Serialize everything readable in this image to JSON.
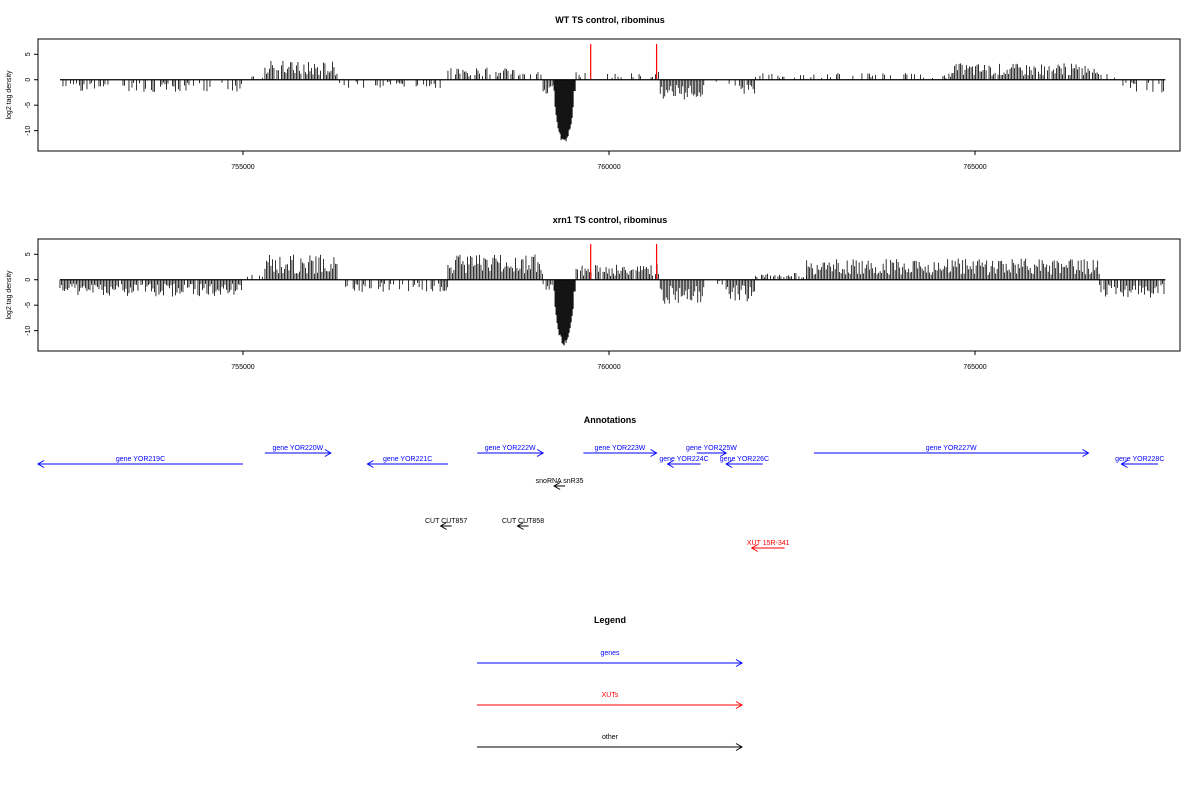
{
  "colors": {
    "ink": "#000000",
    "gene": "#0000ff",
    "xut": "#ff0000",
    "other": "#000000",
    "marker": "#ff0000"
  },
  "chart_data": [
    {
      "type": "bar",
      "title": "WT TS control, ribominus",
      "ylabel": "log2 tag density",
      "xlim": [
        752200,
        767800
      ],
      "ylim": [
        -14,
        8
      ],
      "xticks": [
        755000,
        760000,
        765000
      ],
      "xtick_labels": [
        "755000",
        "760000",
        "765000"
      ],
      "yticks": [
        -10,
        -5,
        0,
        5
      ],
      "ytick_labels": [
        "-10",
        "-5",
        "0",
        "5"
      ],
      "red_markers": [
        759750,
        760650
      ],
      "marker_height": 7,
      "segments": [
        {
          "from": 752500,
          "to": 755000,
          "amp": -2.2,
          "density": 0.45
        },
        {
          "from": 755000,
          "to": 755300,
          "amp": 0.8,
          "density": 0.25
        },
        {
          "from": 755300,
          "to": 756300,
          "amp": 3.4,
          "density": 0.85
        },
        {
          "from": 756300,
          "to": 757800,
          "amp": -1.5,
          "density": 0.3
        },
        {
          "from": 757800,
          "to": 759100,
          "amp": 2.2,
          "density": 0.7
        },
        {
          "from": 759100,
          "to": 759250,
          "amp": -2.5,
          "density": 0.9
        },
        {
          "from": 759250,
          "to": 759550,
          "amp": -13,
          "density": 1.0,
          "solid": true
        },
        {
          "from": 759550,
          "to": 760700,
          "amp": 1.5,
          "density": 0.25
        },
        {
          "from": 760700,
          "to": 761300,
          "amp": -3.6,
          "density": 1.0
        },
        {
          "from": 761300,
          "to": 761600,
          "amp": -0.6,
          "density": 0.2
        },
        {
          "from": 761600,
          "to": 762000,
          "amp": -2.5,
          "density": 0.7
        },
        {
          "from": 762000,
          "to": 764700,
          "amp": 1.2,
          "density": 0.35
        },
        {
          "from": 764700,
          "to": 766700,
          "amp": 3.0,
          "density": 0.9
        },
        {
          "from": 766700,
          "to": 767000,
          "amp": 1.0,
          "density": 0.2
        },
        {
          "from": 767000,
          "to": 767600,
          "amp": -2.3,
          "density": 0.55
        }
      ]
    },
    {
      "type": "bar",
      "title": "xrn1 TS control, ribominus",
      "ylabel": "log2 tag density",
      "xlim": [
        752200,
        767800
      ],
      "ylim": [
        -14,
        8
      ],
      "xticks": [
        755000,
        760000,
        765000
      ],
      "xtick_labels": [
        "755000",
        "760000",
        "765000"
      ],
      "yticks": [
        -10,
        -5,
        0,
        5
      ],
      "ytick_labels": [
        "-10",
        "-5",
        "0",
        "5"
      ],
      "red_markers": [
        759750,
        760650
      ],
      "marker_height": 7,
      "segments": [
        {
          "from": 752500,
          "to": 755000,
          "amp": -3.0,
          "density": 0.95
        },
        {
          "from": 755000,
          "to": 755300,
          "amp": 1.0,
          "density": 0.3
        },
        {
          "from": 755300,
          "to": 756300,
          "amp": 4.5,
          "density": 1.0
        },
        {
          "from": 756300,
          "to": 757800,
          "amp": -2.2,
          "density": 0.45
        },
        {
          "from": 757800,
          "to": 759100,
          "amp": 4.5,
          "density": 1.0
        },
        {
          "from": 759100,
          "to": 759250,
          "amp": -2.5,
          "density": 0.9
        },
        {
          "from": 759250,
          "to": 759550,
          "amp": -13,
          "density": 1.0,
          "solid": true
        },
        {
          "from": 759550,
          "to": 760700,
          "amp": 2.8,
          "density": 0.9
        },
        {
          "from": 760700,
          "to": 761300,
          "amp": -4.5,
          "density": 1.0
        },
        {
          "from": 761300,
          "to": 761600,
          "amp": -1.0,
          "density": 0.3
        },
        {
          "from": 761600,
          "to": 762000,
          "amp": -4.0,
          "density": 0.95
        },
        {
          "from": 762000,
          "to": 762700,
          "amp": 1.2,
          "density": 0.5
        },
        {
          "from": 762700,
          "to": 766700,
          "amp": 3.8,
          "density": 1.0
        },
        {
          "from": 766700,
          "to": 767600,
          "amp": -3.2,
          "density": 0.9
        }
      ]
    }
  ],
  "annotations": {
    "title": "Annotations",
    "features": [
      {
        "label": "gene YOR219C",
        "start": 752200,
        "end": 755000,
        "strand": "-",
        "kind": "gene",
        "row": 1
      },
      {
        "label": "gene YOR220W",
        "start": 755300,
        "end": 756200,
        "strand": "+",
        "kind": "gene",
        "row": 0
      },
      {
        "label": "gene YOR221C",
        "start": 756700,
        "end": 757800,
        "strand": "-",
        "kind": "gene",
        "row": 1
      },
      {
        "label": "gene YOR222W",
        "start": 758200,
        "end": 759100,
        "strand": "+",
        "kind": "gene",
        "row": 0
      },
      {
        "label": "gene YOR223W",
        "start": 759650,
        "end": 760650,
        "strand": "+",
        "kind": "gene",
        "row": 0
      },
      {
        "label": "gene YOR224C",
        "start": 760800,
        "end": 761250,
        "strand": "-",
        "kind": "gene",
        "row": 1
      },
      {
        "label": "gene YOR225W",
        "start": 761200,
        "end": 761600,
        "strand": "+",
        "kind": "gene",
        "row": 0
      },
      {
        "label": "gene YOR226C",
        "start": 761600,
        "end": 762100,
        "strand": "-",
        "kind": "gene",
        "row": 1
      },
      {
        "label": "gene YOR227W",
        "start": 762800,
        "end": 766550,
        "strand": "+",
        "kind": "gene",
        "row": 0
      },
      {
        "label": "gene YOR228C",
        "start": 767000,
        "end": 767500,
        "strand": "-",
        "kind": "gene",
        "row": 1
      },
      {
        "label": "snoRNA snR35",
        "start": 759250,
        "end": 759400,
        "strand": "-",
        "kind": "other",
        "row": 2
      },
      {
        "label": "CUT CUT857",
        "start": 757700,
        "end": 757850,
        "strand": "-",
        "kind": "other",
        "row": 3
      },
      {
        "label": "CUT CUT858",
        "start": 758750,
        "end": 758900,
        "strand": "-",
        "kind": "other",
        "row": 3
      },
      {
        "label": "XUT 15R-341",
        "start": 761950,
        "end": 762400,
        "strand": "-",
        "kind": "xut",
        "row": 4
      }
    ]
  },
  "legend": {
    "title": "Legend",
    "items": [
      {
        "label": "genes",
        "kind": "gene"
      },
      {
        "label": "XUTs",
        "kind": "xut"
      },
      {
        "label": "other",
        "kind": "other"
      }
    ]
  }
}
